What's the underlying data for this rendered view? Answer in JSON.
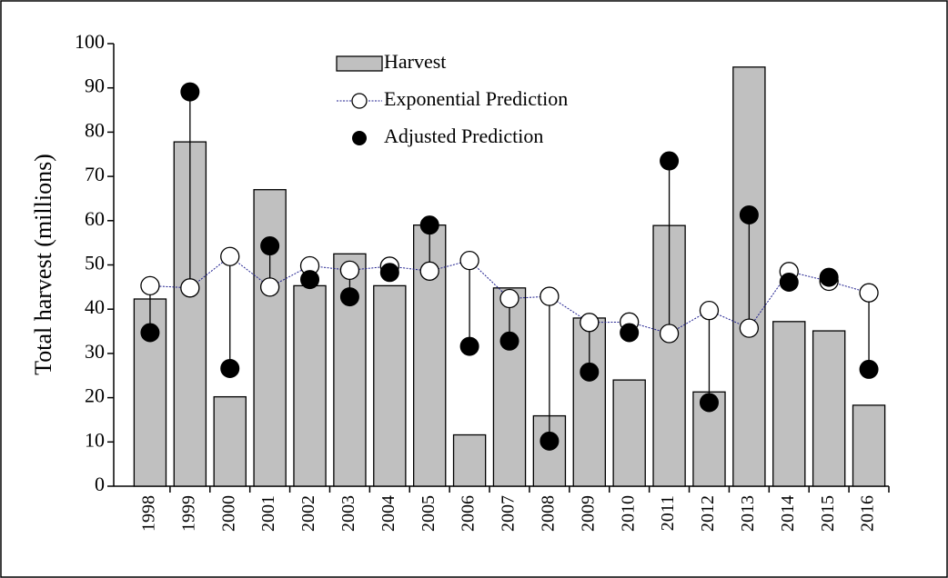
{
  "chart_data": {
    "type": "bar",
    "ylabel": "Total  harvest (millions)",
    "categories": [
      "1998",
      "1999",
      "2000",
      "2001",
      "2002",
      "2003",
      "2004",
      "2005",
      "2006",
      "2007",
      "2008",
      "2009",
      "2010",
      "2011",
      "2012",
      "2013",
      "2014",
      "2015",
      "2016"
    ],
    "series": [
      {
        "name": "Harvest",
        "style": "bar",
        "color": "#c0c0c0",
        "values": [
          42.3,
          77.8,
          20.2,
          67,
          45.3,
          52.5,
          45.3,
          59,
          11.6,
          44.8,
          15.9,
          38,
          24,
          58.9,
          21.3,
          94.7,
          37.2,
          35.1,
          18.3
        ]
      },
      {
        "name": "Exponential Prediction",
        "style": "line",
        "color": "#1f1f8f",
        "values": [
          45.3,
          44.8,
          51.9,
          45,
          49.8,
          48.8,
          49.7,
          48.6,
          51,
          42.4,
          42.9,
          37,
          37.1,
          34.5,
          39.7,
          35.7,
          48.5,
          46.3,
          43.7
        ]
      },
      {
        "name": "Adjusted Prediction",
        "style": "marker",
        "color": "#000000",
        "values": [
          34.7,
          89.1,
          26.6,
          54.3,
          46.7,
          42.8,
          48.3,
          59,
          31.6,
          32.8,
          10.2,
          25.8,
          34.7,
          73.5,
          18.9,
          61.3,
          46.1,
          47.2,
          26.4
        ]
      }
    ],
    "ylim": [
      0,
      100
    ],
    "yticks": [
      0,
      10,
      20,
      30,
      40,
      50,
      60,
      70,
      80,
      90,
      100
    ]
  }
}
